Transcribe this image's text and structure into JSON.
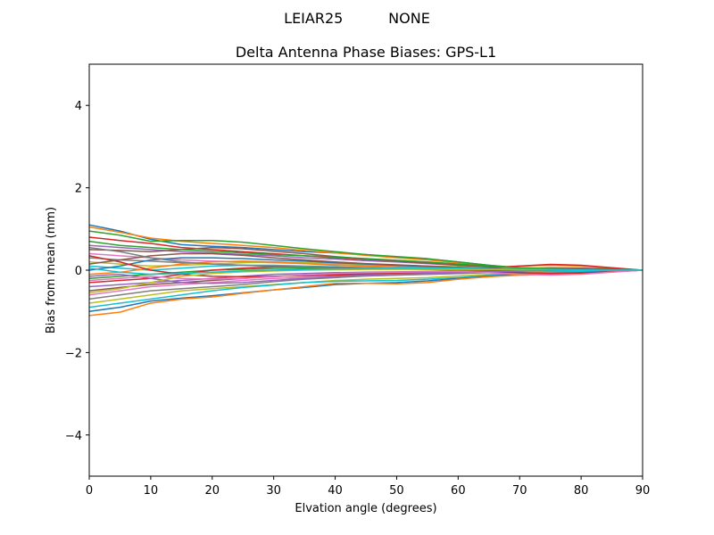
{
  "suptitle": "LEIAR25          NONE",
  "chart_data": {
    "type": "line",
    "title": "Delta Antenna Phase Biases: GPS-L1",
    "xlabel": "Elvation angle (degrees)",
    "ylabel": "Bias from mean (mm)",
    "xlim": [
      0,
      90
    ],
    "ylim": [
      -5,
      5
    ],
    "xticks": [
      0,
      10,
      20,
      30,
      40,
      50,
      60,
      70,
      80,
      90
    ],
    "yticks": [
      -4,
      -2,
      0,
      2,
      4
    ],
    "grid": false,
    "legend": "none",
    "colors": [
      "#1f77b4",
      "#ff7f0e",
      "#2ca02c",
      "#d62728",
      "#9467bd",
      "#8c564b",
      "#e377c2",
      "#7f7f7f",
      "#bcbd22",
      "#17becf"
    ],
    "x": [
      0,
      5,
      10,
      15,
      20,
      25,
      30,
      35,
      40,
      45,
      50,
      55,
      60,
      65,
      70,
      75,
      80,
      85,
      90
    ],
    "series": [
      {
        "values": [
          1.1,
          0.95,
          0.75,
          0.62,
          0.58,
          0.55,
          0.5,
          0.45,
          0.42,
          0.38,
          0.32,
          0.27,
          0.2,
          0.12,
          0.05,
          0.0,
          -0.02,
          -0.02,
          0.0
        ]
      },
      {
        "values": [
          1.05,
          0.92,
          0.78,
          0.7,
          0.65,
          0.6,
          0.55,
          0.48,
          0.42,
          0.36,
          0.3,
          0.25,
          0.18,
          0.1,
          0.05,
          0.02,
          0.0,
          -0.01,
          0.0
        ]
      },
      {
        "values": [
          0.95,
          0.85,
          0.7,
          0.72,
          0.72,
          0.68,
          0.6,
          0.52,
          0.45,
          0.38,
          0.33,
          0.28,
          0.2,
          0.12,
          0.06,
          0.03,
          0.01,
          0.0,
          0.0
        ]
      },
      {
        "values": [
          0.8,
          0.72,
          0.65,
          0.55,
          0.5,
          0.45,
          0.4,
          0.35,
          0.3,
          0.26,
          0.22,
          0.18,
          0.13,
          0.08,
          0.04,
          0.02,
          0.01,
          0.0,
          0.0
        ]
      },
      {
        "values": [
          0.6,
          0.55,
          0.5,
          0.45,
          0.42,
          0.38,
          0.35,
          0.3,
          0.27,
          0.23,
          0.2,
          0.16,
          0.12,
          0.07,
          0.03,
          0.01,
          0.0,
          0.0,
          0.0
        ]
      },
      {
        "values": [
          0.5,
          0.48,
          0.45,
          0.5,
          0.55,
          0.52,
          0.46,
          0.4,
          0.33,
          0.27,
          0.22,
          0.17,
          0.12,
          0.07,
          0.04,
          0.02,
          0.0,
          0.0,
          0.0
        ]
      },
      {
        "values": [
          0.4,
          0.35,
          0.3,
          0.25,
          0.22,
          0.2,
          0.18,
          0.16,
          0.14,
          0.12,
          0.1,
          0.08,
          0.06,
          0.04,
          0.02,
          0.01,
          0.0,
          0.0,
          0.0
        ]
      },
      {
        "values": [
          0.3,
          0.25,
          0.22,
          0.18,
          0.15,
          0.12,
          0.1,
          0.08,
          0.06,
          0.05,
          0.04,
          0.03,
          0.02,
          0.02,
          0.04,
          0.06,
          0.05,
          0.02,
          0.0
        ]
      },
      {
        "values": [
          0.2,
          0.15,
          0.1,
          0.12,
          0.15,
          0.18,
          0.2,
          0.18,
          0.16,
          0.14,
          0.12,
          0.1,
          0.08,
          0.06,
          0.05,
          0.04,
          0.03,
          0.01,
          0.0
        ]
      },
      {
        "values": [
          0.1,
          0.05,
          0.0,
          0.05,
          0.1,
          0.12,
          0.12,
          0.1,
          0.08,
          0.06,
          0.04,
          0.02,
          0.0,
          -0.02,
          -0.04,
          -0.05,
          -0.04,
          -0.02,
          0.0
        ]
      },
      {
        "values": [
          0.0,
          0.1,
          0.25,
          0.3,
          0.3,
          0.28,
          0.25,
          0.22,
          0.18,
          0.15,
          0.12,
          0.08,
          0.05,
          0.02,
          0.0,
          -0.01,
          -0.01,
          0.0,
          0.0
        ]
      },
      {
        "values": [
          -0.1,
          -0.05,
          0.05,
          0.15,
          0.2,
          0.22,
          0.2,
          0.16,
          0.12,
          0.1,
          0.08,
          0.06,
          0.05,
          0.06,
          0.1,
          0.12,
          0.1,
          0.05,
          0.0
        ]
      },
      {
        "values": [
          -0.2,
          -0.15,
          -0.1,
          -0.05,
          0.0,
          0.02,
          0.04,
          0.05,
          0.05,
          0.04,
          0.03,
          0.02,
          0.01,
          0.0,
          0.0,
          0.0,
          0.0,
          0.0,
          0.0
        ]
      },
      {
        "values": [
          -0.3,
          -0.25,
          -0.2,
          -0.1,
          0.0,
          0.05,
          0.08,
          0.08,
          0.07,
          0.06,
          0.05,
          0.04,
          0.04,
          0.06,
          0.1,
          0.14,
          0.12,
          0.06,
          0.0
        ]
      },
      {
        "values": [
          -0.4,
          -0.35,
          -0.3,
          -0.25,
          -0.2,
          -0.15,
          -0.1,
          -0.08,
          -0.06,
          -0.05,
          -0.04,
          -0.03,
          -0.02,
          0.0,
          0.02,
          0.02,
          0.01,
          0.0,
          0.0
        ]
      },
      {
        "values": [
          -0.5,
          -0.42,
          -0.35,
          -0.3,
          -0.25,
          -0.2,
          -0.15,
          -0.12,
          -0.1,
          -0.08,
          -0.07,
          -0.06,
          -0.05,
          -0.02,
          0.02,
          0.05,
          0.05,
          0.03,
          0.0
        ]
      },
      {
        "values": [
          -0.6,
          -0.5,
          -0.4,
          -0.35,
          -0.3,
          -0.25,
          -0.2,
          -0.18,
          -0.16,
          -0.14,
          -0.12,
          -0.1,
          -0.08,
          -0.05,
          -0.02,
          0.0,
          0.0,
          0.0,
          0.0
        ]
      },
      {
        "values": [
          -0.7,
          -0.6,
          -0.5,
          -0.45,
          -0.4,
          -0.35,
          -0.28,
          -0.22,
          -0.18,
          -0.14,
          -0.12,
          -0.1,
          -0.08,
          -0.06,
          -0.04,
          -0.02,
          -0.01,
          0.0,
          0.0
        ]
      },
      {
        "values": [
          -0.8,
          -0.7,
          -0.6,
          -0.5,
          -0.45,
          -0.4,
          -0.35,
          -0.3,
          -0.25,
          -0.22,
          -0.2,
          -0.18,
          -0.14,
          -0.1,
          -0.06,
          -0.03,
          -0.02,
          -0.01,
          0.0
        ]
      },
      {
        "values": [
          -0.9,
          -0.8,
          -0.7,
          -0.6,
          -0.5,
          -0.42,
          -0.36,
          -0.3,
          -0.27,
          -0.26,
          -0.25,
          -0.22,
          -0.18,
          -0.13,
          -0.08,
          -0.05,
          -0.03,
          -0.01,
          0.0
        ]
      },
      {
        "values": [
          -1.0,
          -0.9,
          -0.75,
          -0.68,
          -0.62,
          -0.55,
          -0.48,
          -0.42,
          -0.35,
          -0.32,
          -0.3,
          -0.26,
          -0.2,
          -0.14,
          -0.1,
          -0.08,
          -0.06,
          -0.03,
          0.0
        ]
      },
      {
        "values": [
          -1.1,
          -1.02,
          -0.8,
          -0.7,
          -0.65,
          -0.56,
          -0.48,
          -0.4,
          -0.32,
          -0.32,
          -0.33,
          -0.3,
          -0.22,
          -0.16,
          -0.12,
          -0.1,
          -0.08,
          -0.04,
          0.0
        ]
      },
      {
        "values": [
          0.7,
          0.6,
          0.55,
          0.5,
          0.46,
          0.42,
          0.38,
          0.35,
          0.32,
          0.28,
          0.24,
          0.2,
          0.15,
          0.1,
          0.06,
          0.04,
          0.02,
          0.01,
          0.0
        ]
      },
      {
        "values": [
          0.35,
          0.2,
          0.0,
          -0.1,
          -0.15,
          -0.16,
          -0.15,
          -0.14,
          -0.12,
          -0.1,
          -0.08,
          -0.06,
          -0.04,
          -0.04,
          -0.06,
          -0.08,
          -0.07,
          -0.04,
          0.0
        ]
      },
      {
        "values": [
          -0.15,
          -0.1,
          -0.2,
          -0.3,
          -0.32,
          -0.3,
          -0.25,
          -0.2,
          -0.15,
          -0.12,
          -0.1,
          -0.08,
          -0.06,
          -0.04,
          -0.02,
          -0.01,
          0.0,
          0.0,
          0.0
        ]
      },
      {
        "values": [
          0.15,
          0.25,
          0.35,
          0.4,
          0.4,
          0.36,
          0.3,
          0.25,
          0.2,
          0.16,
          0.13,
          0.1,
          0.07,
          0.04,
          0.02,
          0.01,
          0.0,
          0.0,
          0.0
        ]
      },
      {
        "values": [
          -0.25,
          -0.2,
          -0.15,
          -0.2,
          -0.22,
          -0.2,
          -0.16,
          -0.12,
          -0.08,
          -0.06,
          -0.05,
          -0.04,
          -0.03,
          -0.06,
          -0.1,
          -0.12,
          -0.1,
          -0.05,
          0.0
        ]
      },
      {
        "values": [
          0.55,
          0.45,
          0.3,
          0.2,
          0.15,
          0.12,
          0.1,
          0.08,
          0.06,
          0.05,
          0.05,
          0.04,
          0.03,
          0.02,
          0.02,
          0.01,
          0.01,
          0.0,
          0.0
        ]
      },
      {
        "values": [
          -0.55,
          -0.45,
          -0.3,
          -0.15,
          -0.08,
          -0.04,
          -0.02,
          0.0,
          0.01,
          0.02,
          0.02,
          0.02,
          0.02,
          0.02,
          0.01,
          0.01,
          0.0,
          0.0,
          0.0
        ]
      },
      {
        "values": [
          0.05,
          -0.05,
          -0.1,
          -0.08,
          -0.05,
          -0.02,
          0.0,
          0.02,
          0.03,
          0.04,
          0.05,
          0.05,
          0.05,
          0.04,
          0.03,
          0.02,
          0.01,
          0.0,
          0.0
        ]
      }
    ]
  }
}
